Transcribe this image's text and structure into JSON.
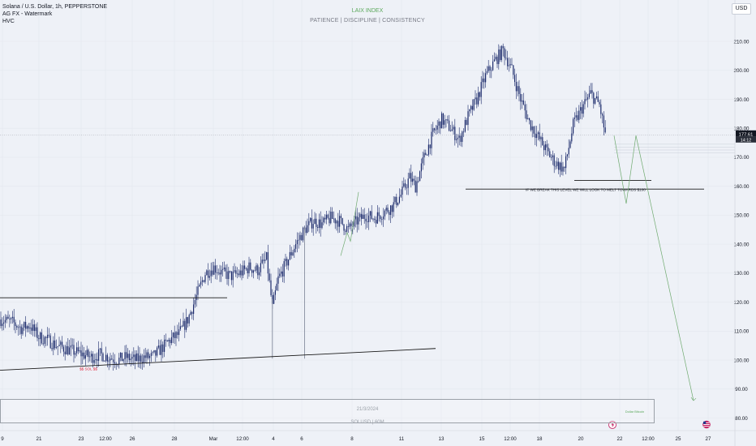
{
  "legend": {
    "symbol": "Solana / U.S. Dollar, 1h, PEPPERSTONE",
    "indicator1": "AG FX - Watermark",
    "indicator2": "HVC"
  },
  "watermark": {
    "title": "LAIX INDEX",
    "subtitle": "PATIENCE | DISCIPLINE | CONSISTENCY",
    "date": "21/3/2024",
    "symbol": "SOLUSD | 60M",
    "side_label": "Dollar Bitcoin",
    "title_color": "#5ba85b"
  },
  "currency_button": "USD",
  "colors": {
    "background": "#eef1f7",
    "candle": "#1b2a6b",
    "trendline": "#1a1a1a",
    "projection": "#6faa6f",
    "tag": "#e0223a"
  },
  "chart_data": {
    "type": "candlestick",
    "ylim": [
      77,
      215
    ],
    "y_ticks": [
      80,
      90,
      100,
      110,
      120,
      130,
      140,
      150,
      160,
      170,
      180,
      190,
      200,
      210
    ],
    "x_ticks": [
      "9",
      "21",
      "23",
      "12:00",
      "26",
      "28",
      "Mar",
      "12:00",
      "4",
      "6",
      "8",
      "11",
      "13",
      "15",
      "12:00",
      "18",
      "20",
      "22",
      "12:00",
      "25",
      "27"
    ],
    "last_price": "177.61",
    "countdown": "14:12",
    "price_path_anchors": [
      [
        0,
        114
      ],
      [
        8,
        113
      ],
      [
        14,
        111
      ],
      [
        20,
        112
      ],
      [
        26,
        108
      ],
      [
        32,
        107
      ],
      [
        38,
        105
      ],
      [
        44,
        104
      ],
      [
        50,
        103
      ],
      [
        56,
        102
      ],
      [
        62,
        101
      ],
      [
        68,
        102
      ],
      [
        74,
        101
      ],
      [
        80,
        100
      ],
      [
        86,
        101
      ],
      [
        92,
        100
      ],
      [
        98,
        101
      ],
      [
        104,
        101
      ],
      [
        110,
        104
      ],
      [
        116,
        107
      ],
      [
        122,
        109
      ],
      [
        128,
        114
      ],
      [
        134,
        122
      ],
      [
        140,
        130
      ],
      [
        146,
        132
      ],
      [
        152,
        130
      ],
      [
        158,
        129
      ],
      [
        164,
        130
      ],
      [
        170,
        132
      ],
      [
        176,
        131
      ],
      [
        182,
        135
      ],
      [
        186,
        118
      ],
      [
        190,
        128
      ],
      [
        196,
        134
      ],
      [
        202,
        140
      ],
      [
        208,
        145
      ],
      [
        214,
        148
      ],
      [
        220,
        147
      ],
      [
        226,
        149
      ],
      [
        232,
        148
      ],
      [
        238,
        145
      ],
      [
        244,
        148
      ],
      [
        250,
        150
      ],
      [
        256,
        149
      ],
      [
        262,
        151
      ],
      [
        268,
        153
      ],
      [
        274,
        157
      ],
      [
        280,
        163
      ],
      [
        284,
        160
      ],
      [
        290,
        170
      ],
      [
        296,
        178
      ],
      [
        302,
        183
      ],
      [
        308,
        180
      ],
      [
        314,
        176
      ],
      [
        320,
        184
      ],
      [
        326,
        190
      ],
      [
        332,
        198
      ],
      [
        338,
        203
      ],
      [
        344,
        207
      ],
      [
        350,
        200
      ],
      [
        356,
        190
      ],
      [
        362,
        182
      ],
      [
        368,
        177
      ],
      [
        374,
        172
      ],
      [
        380,
        168
      ],
      [
        386,
        166
      ],
      [
        392,
        181
      ],
      [
        398,
        187
      ],
      [
        404,
        192
      ],
      [
        410,
        188
      ],
      [
        414,
        178
      ]
    ],
    "annotation": "IF WE BREAK THIS LEVEL WE WILL LOOK TO MELT TOWARDS $100",
    "level_tag": "$$ SOL $$",
    "levels": {
      "upper_support": 159,
      "box_level": 162,
      "resistance_left": 121.5
    },
    "trendline": {
      "from": 96.5,
      "to": 104
    },
    "projection_path": [
      177.5,
      154,
      177.5,
      86
    ]
  }
}
